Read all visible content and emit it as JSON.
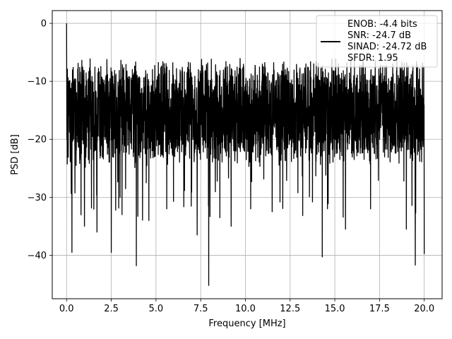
{
  "chart_data": {
    "type": "line",
    "title": "",
    "xlabel": "Frequency [MHz]",
    "ylabel": "PSD [dB]",
    "xlim": [
      -0.8,
      21.0
    ],
    "ylim": [
      -47.5,
      2.2
    ],
    "x_ticks": [
      0.0,
      2.5,
      5.0,
      7.5,
      10.0,
      12.5,
      15.0,
      17.5,
      20.0
    ],
    "x_tick_labels": [
      "0.0",
      "2.5",
      "5.0",
      "7.5",
      "10.0",
      "12.5",
      "15.0",
      "17.5",
      "20.0"
    ],
    "y_ticks": [
      0,
      -10,
      -20,
      -30,
      -40
    ],
    "y_tick_labels": [
      "0",
      "−10",
      "−20",
      "−30",
      "−40"
    ],
    "grid": true,
    "legend": {
      "placement": "upper-right",
      "entries": [
        "ENOB: -4.4 bits",
        "SNR: -24.7 dB",
        "SINAD: -24.72 dB",
        "SFDR: 1.95"
      ]
    },
    "series": [
      {
        "color": "#000000",
        "x_range": [
          0.0,
          20.0
        ],
        "baseline_db": -15.5,
        "upper_envelope_db": -6,
        "peak": {
          "x": 0.0,
          "y": 0.0
        },
        "dips": [
          {
            "x": 0.3,
            "y": -39.5
          },
          {
            "x": 1.0,
            "y": -35.0
          },
          {
            "x": 1.7,
            "y": -36.0
          },
          {
            "x": 2.5,
            "y": -39.5
          },
          {
            "x": 3.1,
            "y": -33.0
          },
          {
            "x": 3.9,
            "y": -41.8
          },
          {
            "x": 4.6,
            "y": -34.0
          },
          {
            "x": 5.6,
            "y": -32.0
          },
          {
            "x": 7.3,
            "y": -36.5
          },
          {
            "x": 7.95,
            "y": -45.2
          },
          {
            "x": 9.2,
            "y": -35.0
          },
          {
            "x": 10.3,
            "y": -32.0
          },
          {
            "x": 11.5,
            "y": -32.5
          },
          {
            "x": 14.3,
            "y": -40.3
          },
          {
            "x": 15.6,
            "y": -35.5
          },
          {
            "x": 17.0,
            "y": -32.0
          },
          {
            "x": 19.0,
            "y": -35.5
          },
          {
            "x": 19.5,
            "y": -41.7
          },
          {
            "x": 20.0,
            "y": -39.8
          }
        ]
      }
    ]
  }
}
